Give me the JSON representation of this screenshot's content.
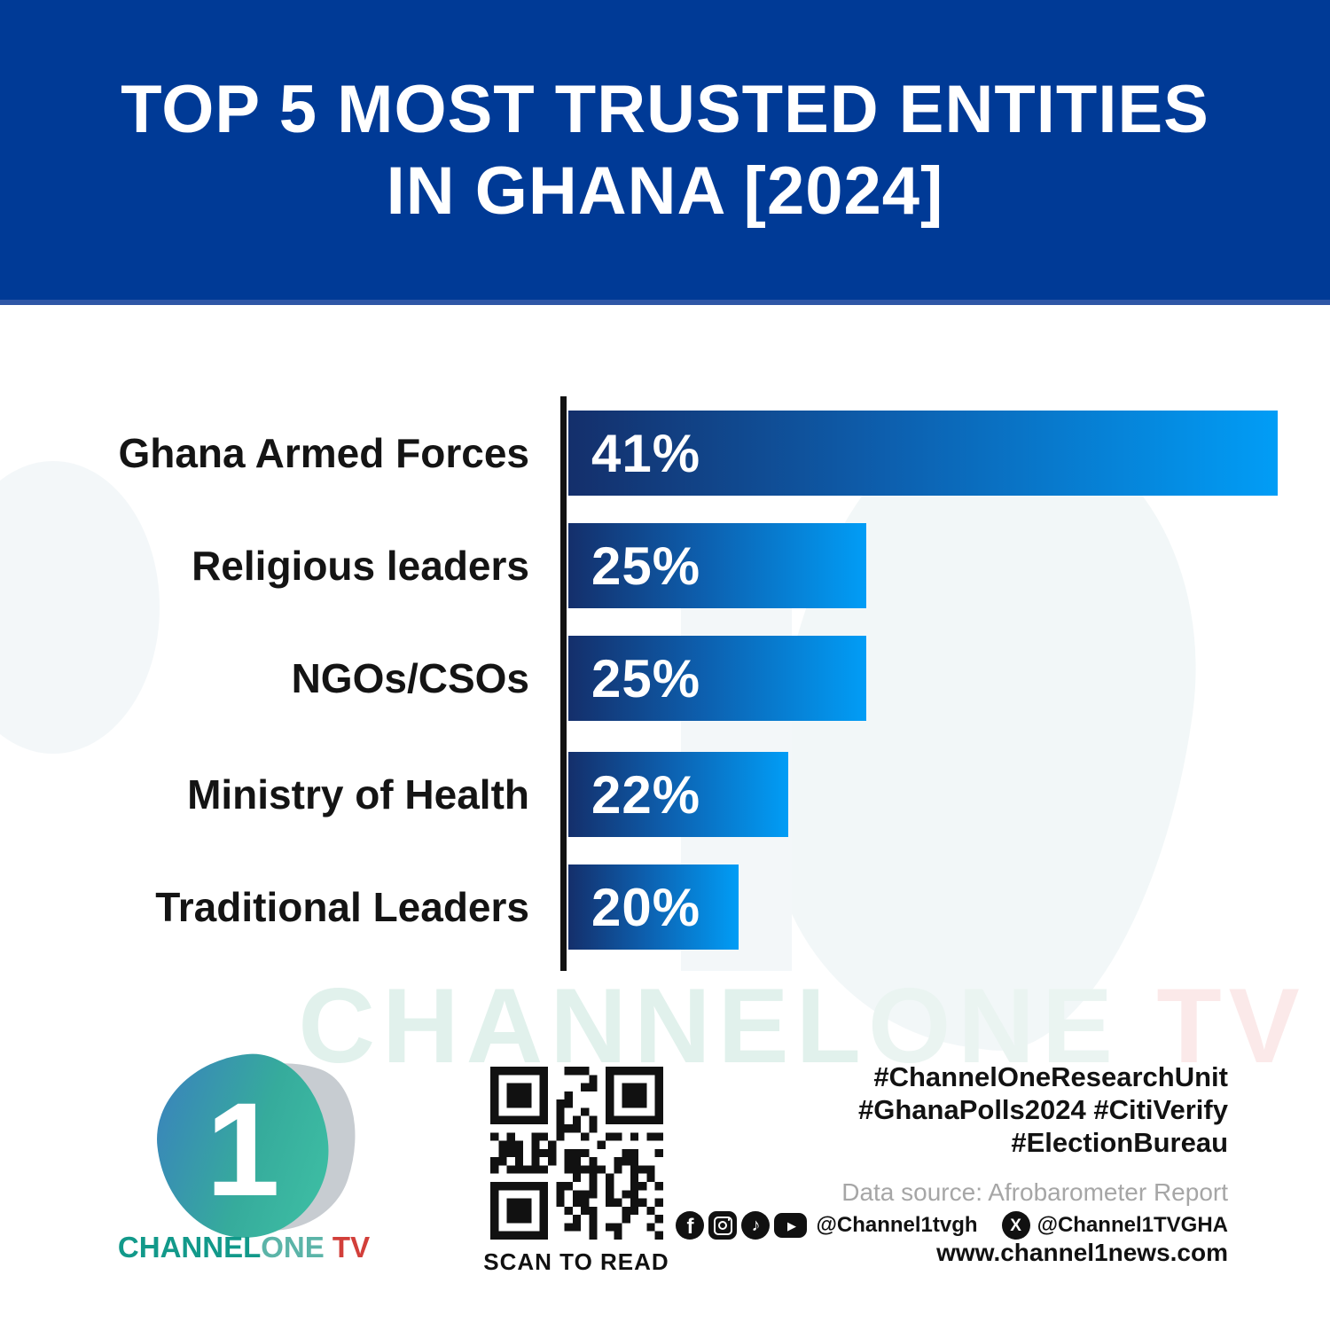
{
  "header": {
    "title_line1": "TOP 5 MOST TRUSTED ENTITIES",
    "title_line2": "IN GHANA [2024]",
    "background_color": "#003a96",
    "text_color": "#ffffff"
  },
  "chart_data": {
    "type": "bar",
    "orientation": "horizontal",
    "title": "Top 5 Most Trusted Entities in Ghana [2024]",
    "categories": [
      "Ghana Armed Forces",
      "Religious leaders",
      "NGOs/CSOs",
      "Ministry of Health",
      "Traditional Leaders"
    ],
    "values": [
      41,
      25,
      25,
      22,
      20
    ],
    "value_labels": [
      "41%",
      "25%",
      "25%",
      "22%",
      "20%"
    ],
    "unit": "%",
    "bar_visual_length_pct": [
      100,
      42,
      42,
      31,
      24
    ],
    "bar_gradient_start": "#142f6b",
    "bar_gradient_end": "#019df6",
    "axis_color": "#121212",
    "label_color": "#141414",
    "value_color": "#ffffff",
    "grid": false,
    "legend": "none"
  },
  "watermark": {
    "channel": "CHANNEL",
    "one": "ONE",
    "tv": " TV",
    "channel_color": "#e1f1ec",
    "one_color": "#eaf4f1",
    "tv_color": "#fbe9e9"
  },
  "footer": {
    "logo": {
      "digit": "1",
      "channel": "CHANNEL",
      "one": "ONE",
      "tv": " TV",
      "teal_color": "#12998a",
      "red_color": "#d23f3a"
    },
    "qr_label": "SCAN TO READ",
    "hashtags": [
      "#ChannelOneResearchUnit",
      "#GhanaPolls2024 #CitiVerify",
      "#ElectionBureau"
    ],
    "data_source": "Data source: Afrobarometer Report",
    "social": {
      "icons": [
        "facebook-icon",
        "instagram-icon",
        "tiktok-icon",
        "youtube-icon"
      ],
      "handle_main": "@Channel1tvgh",
      "x_icon": "x-twitter-icon",
      "handle_x": "@Channel1TVGHA"
    },
    "website": "www.channel1news.com"
  }
}
